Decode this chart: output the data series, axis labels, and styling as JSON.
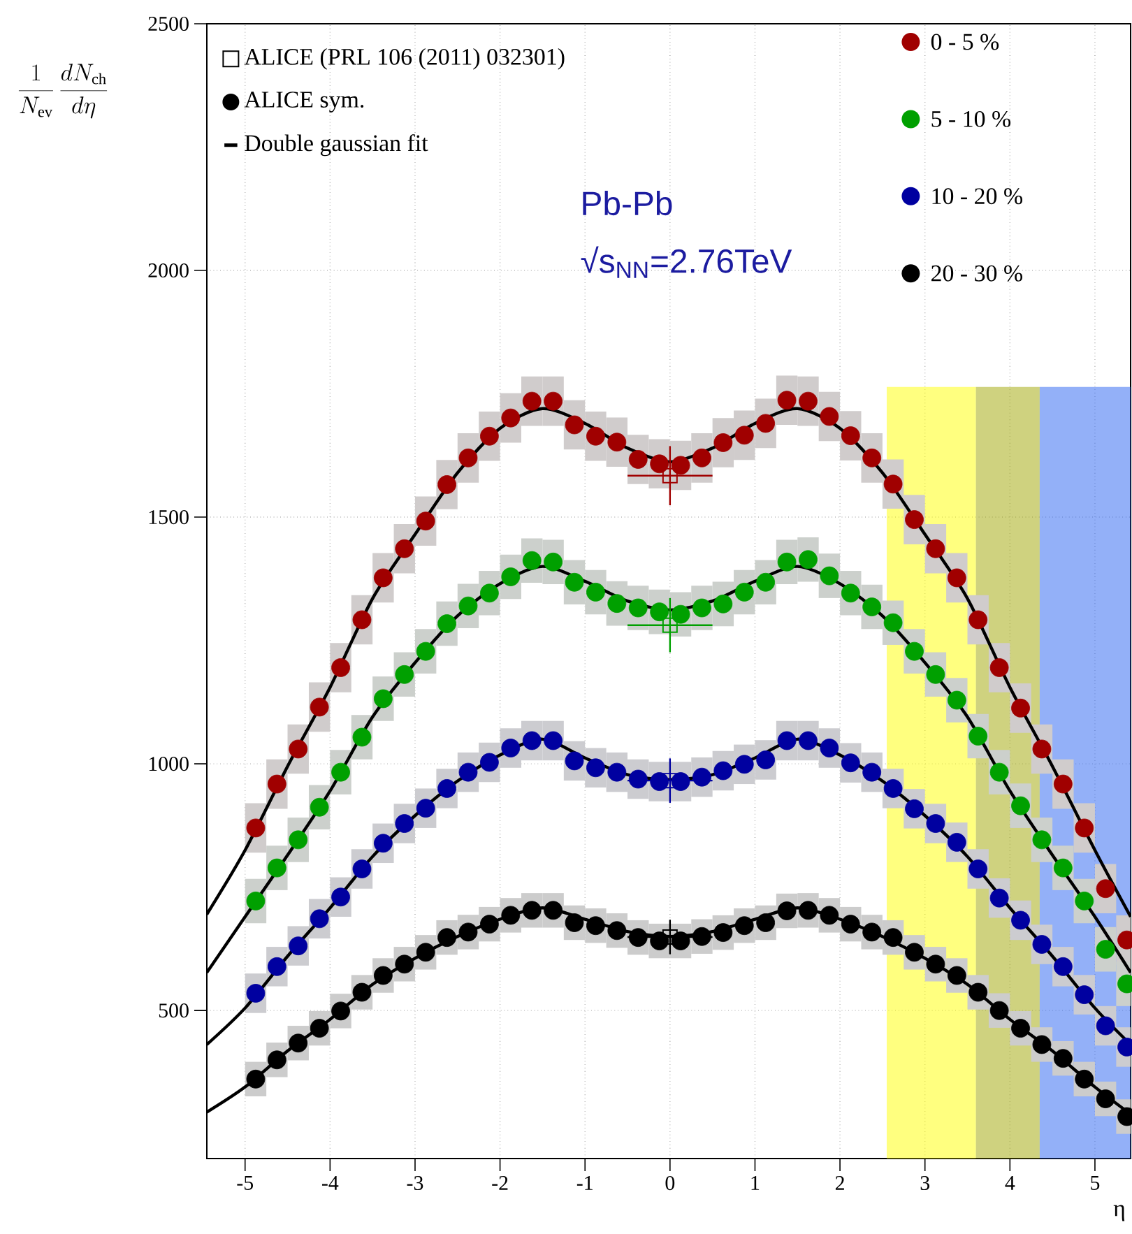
{
  "chart_data": {
    "type": "scatter",
    "xlabel": "η",
    "ylabel": "\\frac{1}{N_{\\mathrm{ev}}}\\,\\frac{dN_{\\mathrm{ch}}}{d\\eta}",
    "xlim": [
      -5.45,
      5.42
    ],
    "ylim": [
      200,
      2500
    ],
    "xticks": [
      -5,
      -4,
      -3,
      -2,
      -1,
      0,
      1,
      2,
      3,
      4,
      5
    ],
    "yticks": [
      500,
      1000,
      1500,
      2000,
      2500
    ],
    "grid": true,
    "legend": "top",
    "marker": "circle",
    "annotations": [
      "ALICE sym.",
      "Pb-Pb",
      "√s$_{NN}$=2.76TeV"
    ],
    "bands": [
      {
        "axis": "x",
        "from": 2.55,
        "to": 3.6,
        "color": "#ffff00"
      },
      {
        "axis": "x",
        "from": 3.6,
        "to": 4.35,
        "color": "#9fa500"
      },
      {
        "axis": "x",
        "from": 4.35,
        "to": 5.42,
        "color": "#2761f1"
      }
    ],
    "x": [
      -4.875,
      -4.625,
      -4.375,
      -4.125,
      -3.875,
      -3.625,
      -3.375,
      -3.125,
      -2.875,
      -2.625,
      -2.375,
      -2.125,
      -1.875,
      -1.625,
      -1.375,
      -1.125,
      -0.875,
      -0.625,
      -0.375,
      -0.125,
      0.125,
      0.375,
      0.625,
      0.875,
      1.125,
      1.375,
      1.625,
      1.875,
      2.125,
      2.375,
      2.625,
      2.875,
      3.125,
      3.375,
      3.625,
      3.875,
      4.125,
      4.375,
      4.625,
      4.875,
      5.125,
      5.375
    ],
    "series": [
      {
        "name": "0 - 5 %",
        "color": "#a00000",
        "values": [
          870,
          959,
          1030,
          1115,
          1195,
          1292,
          1377,
          1436,
          1492,
          1566,
          1620,
          1664,
          1701,
          1735,
          1735,
          1687,
          1664,
          1652,
          1617,
          1608,
          1605,
          1620,
          1651,
          1666,
          1690,
          1737,
          1735,
          1704,
          1665,
          1620,
          1567,
          1495,
          1436,
          1377,
          1292,
          1195,
          1113,
          1030,
          959,
          870,
          747,
          643
        ],
        "errors": [
          50,
          50,
          50,
          50,
          50,
          50,
          50,
          50,
          50,
          50,
          50,
          50,
          50,
          50,
          50,
          50,
          50,
          50,
          50,
          50,
          50,
          50,
          50,
          50,
          50,
          50,
          50,
          50,
          50,
          50,
          50,
          50,
          50,
          50,
          50,
          50,
          50,
          50,
          50,
          50,
          50,
          50
        ]
      },
      {
        "name": "5 - 10 %",
        "color": "#00a000",
        "values": [
          722,
          789,
          846,
          912,
          983,
          1054,
          1132,
          1181,
          1228,
          1284,
          1320,
          1346,
          1379,
          1412,
          1409,
          1368,
          1348,
          1325,
          1316,
          1308,
          1303,
          1316,
          1324,
          1348,
          1368,
          1409,
          1414,
          1381,
          1346,
          1318,
          1286,
          1228,
          1181,
          1129,
          1056,
          983,
          915,
          846,
          789,
          722,
          624,
          554
        ],
        "errors": [
          45,
          45,
          45,
          45,
          45,
          45,
          45,
          45,
          45,
          45,
          45,
          45,
          45,
          45,
          45,
          45,
          45,
          45,
          45,
          45,
          45,
          45,
          45,
          45,
          45,
          45,
          45,
          45,
          45,
          45,
          45,
          45,
          45,
          45,
          45,
          45,
          45,
          45,
          45,
          45,
          45,
          45
        ]
      },
      {
        "name": "10 - 20 %",
        "color": "#0000a0",
        "values": [
          535,
          589,
          631,
          686,
          730,
          787,
          839,
          879,
          910,
          950,
          983,
          1003,
          1032,
          1047,
          1047,
          1006,
          992,
          983,
          969,
          964,
          964,
          973,
          986,
          999,
          1008,
          1047,
          1047,
          1032,
          1002,
          983,
          950,
          909,
          879,
          841,
          787,
          728,
          683,
          634,
          589,
          532,
          469,
          426
        ],
        "errors": [
          40,
          40,
          40,
          40,
          40,
          40,
          40,
          40,
          40,
          40,
          40,
          40,
          40,
          40,
          40,
          40,
          40,
          40,
          40,
          40,
          40,
          40,
          40,
          40,
          40,
          40,
          40,
          40,
          40,
          40,
          40,
          40,
          40,
          40,
          40,
          40,
          40,
          40,
          40,
          40,
          40,
          40
        ]
      },
      {
        "name": "20 - 30 %",
        "color": "#000000",
        "values": [
          361,
          400,
          434,
          464,
          499,
          537,
          571,
          594,
          618,
          648,
          659,
          675,
          693,
          703,
          703,
          678,
          672,
          662,
          648,
          641,
          641,
          650,
          658,
          672,
          678,
          702,
          703,
          693,
          675,
          659,
          648,
          618,
          594,
          571,
          537,
          500,
          464,
          431,
          403,
          361,
          321,
          285
        ],
        "errors": [
          35,
          35,
          35,
          35,
          35,
          35,
          35,
          35,
          35,
          35,
          35,
          35,
          35,
          35,
          35,
          35,
          35,
          35,
          35,
          35,
          35,
          35,
          35,
          35,
          35,
          35,
          35,
          35,
          35,
          35,
          35,
          35,
          35,
          35,
          35,
          35,
          35,
          35,
          35,
          35,
          35,
          35
        ]
      },
      {
        "name": "ALICE (PRL 106 (2011) 032301)",
        "type": "scatter",
        "marker": "square",
        "color": "#000000",
        "colors": [
          "#a00000",
          "#00a000",
          "#0000a0",
          "#000000"
        ],
        "x": [
          0,
          0,
          0,
          0
        ],
        "values": [
          1584,
          1281,
          966,
          649
        ],
        "errors": [
          60,
          55,
          45,
          35
        ],
        "xerrors": [
          0.5,
          0.5,
          0.5,
          0.5
        ]
      },
      {
        "name": "Double gaussian fit",
        "type": "line",
        "marker": "none",
        "color": "#000000",
        "x": [
          -5.45,
          -5,
          -4.5,
          -4,
          -3.5,
          -3,
          -2.5,
          -2,
          -1.5,
          -1,
          -0.5,
          0,
          0.5,
          1,
          1.5,
          2,
          2.5,
          3,
          3.5,
          4,
          4.5,
          5,
          5.42
        ],
        "values": [
          695,
          825,
          995,
          1155,
          1335,
          1465,
          1590,
          1680,
          1720,
          1690,
          1640,
          1612,
          1640,
          1690,
          1720,
          1680,
          1590,
          1465,
          1335,
          1155,
          995,
          825,
          690
        ]
      },
      {
        "type": "line",
        "marker": "none",
        "color": "#000000",
        "x": [
          -5.45,
          -5,
          -4.5,
          -4,
          -3.5,
          -3,
          -2.5,
          -2,
          -1.5,
          -1,
          -0.5,
          0,
          0.5,
          1,
          1.5,
          2,
          2.5,
          3,
          3.5,
          4,
          4.5,
          5,
          5.42
        ],
        "values": [
          577,
          690,
          815,
          945,
          1095,
          1205,
          1300,
          1365,
          1400,
          1370,
          1330,
          1312,
          1330,
          1370,
          1400,
          1365,
          1300,
          1205,
          1095,
          945,
          815,
          690,
          577
        ]
      },
      {
        "type": "line",
        "marker": "none",
        "color": "#000000",
        "x": [
          -5.45,
          -5,
          -4.5,
          -4,
          -3.5,
          -3,
          -2.5,
          -2,
          -1.5,
          -1,
          -0.5,
          0,
          0.5,
          1,
          1.5,
          2,
          2.5,
          3,
          3.5,
          4,
          4.5,
          5,
          5.42
        ],
        "values": [
          431,
          505,
          610,
          708,
          812,
          895,
          965,
          1018,
          1050,
          1012,
          978,
          968,
          978,
          1012,
          1050,
          1018,
          965,
          895,
          812,
          708,
          610,
          505,
          431
        ]
      },
      {
        "type": "line",
        "marker": "none",
        "color": "#000000",
        "x": [
          -5.45,
          -5,
          -4.5,
          -4,
          -3.5,
          -3,
          -2.5,
          -2,
          -1.5,
          -1,
          -0.5,
          0,
          0.5,
          1,
          1.5,
          2,
          2.5,
          3,
          3.5,
          4,
          4.5,
          5,
          5.42
        ],
        "values": [
          294,
          345,
          418,
          482,
          553,
          606,
          650,
          685,
          708,
          685,
          660,
          650,
          660,
          685,
          708,
          685,
          650,
          606,
          553,
          482,
          418,
          345,
          290
        ]
      }
    ]
  }
}
